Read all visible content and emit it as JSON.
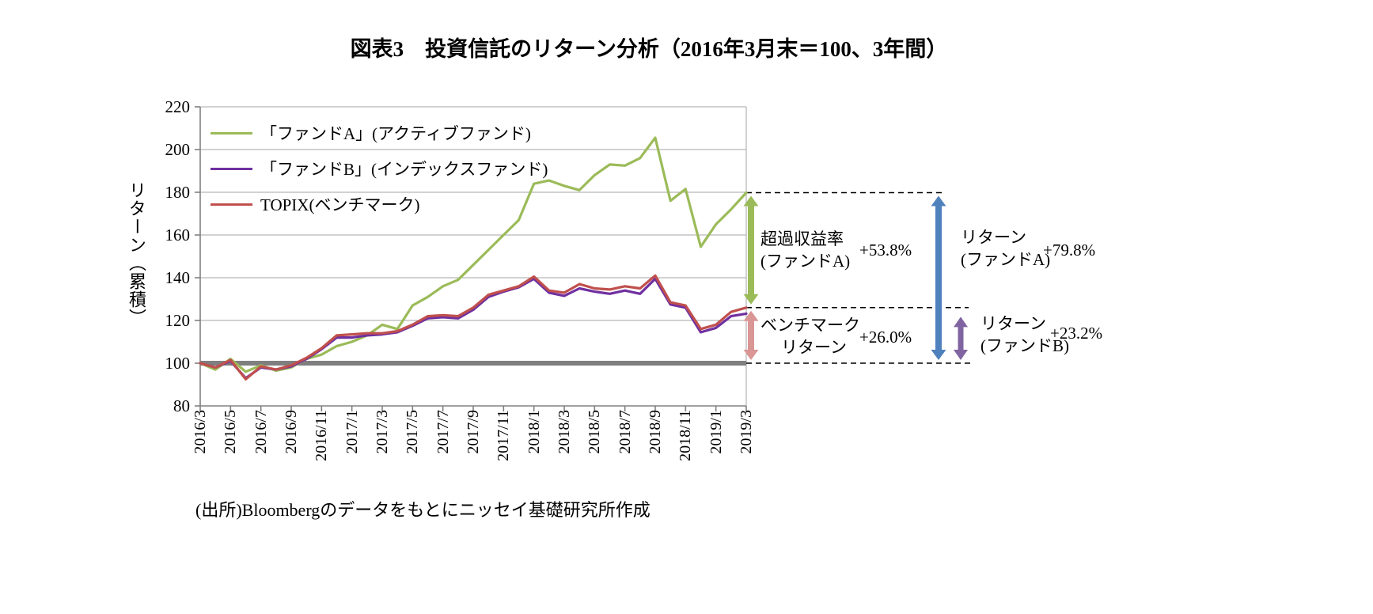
{
  "source": "(出所)Bloombergのデータをもとにニッセイ基礎研究所作成",
  "chart_data": {
    "type": "line",
    "title": "図表3　投資信託のリターン分析（2016年3月末＝100、3年間）",
    "y_axis_label": "リターン（累積）",
    "ylim": [
      80,
      220
    ],
    "ytick_step": 20,
    "y_tick_labels": [
      80,
      100,
      120,
      140,
      160,
      180,
      200,
      220
    ],
    "grid": true,
    "legend_position": "top-left-inside",
    "months": [
      "2016/3",
      "2016/4",
      "2016/5",
      "2016/6",
      "2016/7",
      "2016/8",
      "2016/9",
      "2016/10",
      "2016/11",
      "2016/12",
      "2017/1",
      "2017/2",
      "2017/3",
      "2017/4",
      "2017/5",
      "2017/6",
      "2017/7",
      "2017/8",
      "2017/9",
      "2017/10",
      "2017/11",
      "2017/12",
      "2018/1",
      "2018/2",
      "2018/3",
      "2018/4",
      "2018/5",
      "2018/6",
      "2018/7",
      "2018/8",
      "2018/9",
      "2018/10",
      "2018/11",
      "2018/12",
      "2019/1",
      "2019/2",
      "2019/3"
    ],
    "x_tick_labels_visible": [
      "2016/3",
      "2016/5",
      "2016/7",
      "2016/9",
      "2016/11",
      "2017/1",
      "2017/3",
      "2017/5",
      "2017/7",
      "2017/9",
      "2017/11",
      "2018/1",
      "2018/3",
      "2018/5",
      "2018/7",
      "2018/9",
      "2018/11",
      "2019/1",
      "2019/3"
    ],
    "series": [
      {
        "key": "fund_a",
        "name": "「ファンドA」(アクティブファンド)",
        "color": "#9BBB59",
        "values": [
          100,
          97,
          102,
          96,
          99,
          96.5,
          98,
          102,
          104,
          108,
          110,
          113,
          118,
          116,
          127,
          131,
          136,
          139,
          146,
          153,
          160,
          167,
          184,
          185.5,
          183,
          181,
          188,
          193,
          192.5,
          196,
          205.5,
          176,
          181.5,
          154.5,
          165,
          172,
          179.8
        ]
      },
      {
        "key": "fund_b",
        "name": "「ファンドB」(インデックスファンド)",
        "color": "#7030A0",
        "values": [
          100,
          98,
          101,
          93,
          98,
          97,
          98.5,
          102,
          106.5,
          112,
          112,
          113,
          113.5,
          114.5,
          117.5,
          121,
          121.5,
          121,
          125,
          131,
          133.5,
          135.5,
          139.5,
          133,
          131.5,
          135,
          133.5,
          132.5,
          134,
          132.5,
          139.5,
          127.5,
          126,
          114.5,
          116.5,
          122,
          123.2
        ]
      },
      {
        "key": "topix",
        "name": "TOPIX(ベンチマーク)",
        "color": "#C0504D",
        "values": [
          100,
          98,
          101.5,
          92.5,
          98.5,
          97,
          99,
          102.5,
          107,
          113,
          113.5,
          114,
          114,
          115,
          118,
          122,
          122.5,
          122,
          126,
          132,
          134,
          136,
          140.5,
          134,
          133,
          137,
          135,
          134.5,
          136,
          135,
          141,
          128.5,
          127,
          116,
          118,
          124,
          126
        ]
      }
    ],
    "baseline": {
      "value": 100,
      "color": "#7F7F7F"
    }
  },
  "annotations": {
    "excess": {
      "line1": "超過収益率",
      "line2": "(ファンドA)",
      "value": "+53.8%",
      "arrow_color": "#9BBB59",
      "from": 126.0,
      "to": 179.8
    },
    "benchmark": {
      "line1": "ベンチマーク",
      "line2": "リターン",
      "value": "+26.0%",
      "arrow_color": "#D99694",
      "from": 100,
      "to": 126.0
    },
    "return_a": {
      "line1": "リターン",
      "line2": "(ファンドA)",
      "value": "+79.8%",
      "arrow_color": "#4F81BD",
      "from": 100,
      "to": 179.8
    },
    "return_b": {
      "line1": "リターン",
      "line2": "(ファンドB)",
      "value": "+23.2%",
      "arrow_color": "#8064A2",
      "from": 100,
      "to": 123.2
    }
  }
}
